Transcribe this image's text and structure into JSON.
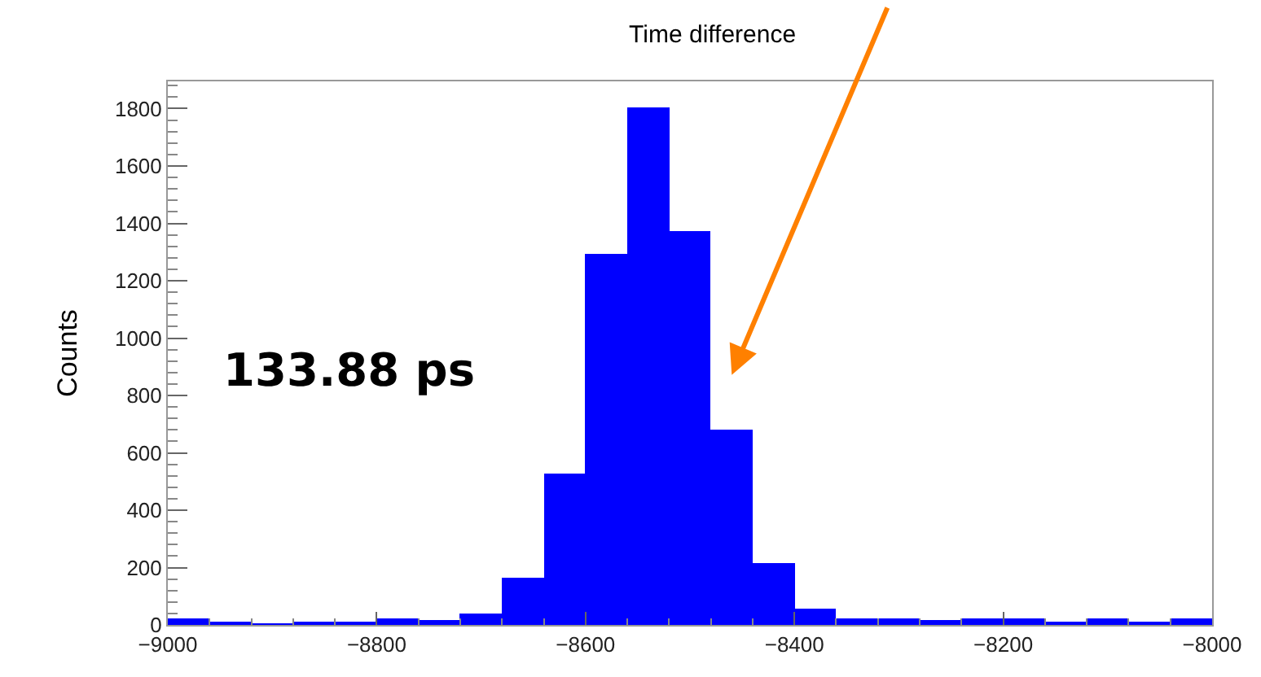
{
  "chart_data": {
    "type": "histogram",
    "title": "Time difference",
    "ylabel": "Counts",
    "bins": [
      -9000,
      -8960,
      -8920,
      -8880,
      -8840,
      -8800,
      -8760,
      -8720,
      -8680,
      -8640,
      -8600,
      -8560,
      -8520,
      -8480,
      -8440,
      -8400,
      -8360,
      -8320,
      -8280,
      -8240,
      -8200,
      -8160,
      -8120,
      -8080,
      -8040,
      -8000
    ],
    "values": [
      20,
      12,
      5,
      12,
      12,
      20,
      15,
      40,
      167,
      530,
      1296,
      1803,
      1372,
      681,
      218,
      56,
      20,
      23,
      18,
      25,
      20,
      14,
      20,
      14,
      20
    ],
    "color": "#0000ff",
    "xlim": [
      -9000,
      -8000
    ],
    "xticks": [
      {
        "value": -9000,
        "label": "−9000"
      },
      {
        "value": -8800,
        "label": "−8800"
      },
      {
        "value": -8600,
        "label": "−8600"
      },
      {
        "value": -8400,
        "label": "−8400"
      },
      {
        "value": -8200,
        "label": "−8200"
      },
      {
        "value": -8000,
        "label": "−8000"
      }
    ],
    "ylim": [
      0,
      1895
    ],
    "yticks": [
      0,
      200,
      400,
      600,
      800,
      1000,
      1200,
      1400,
      1600,
      1800
    ],
    "annotations": [
      "133.88 ps"
    ]
  }
}
